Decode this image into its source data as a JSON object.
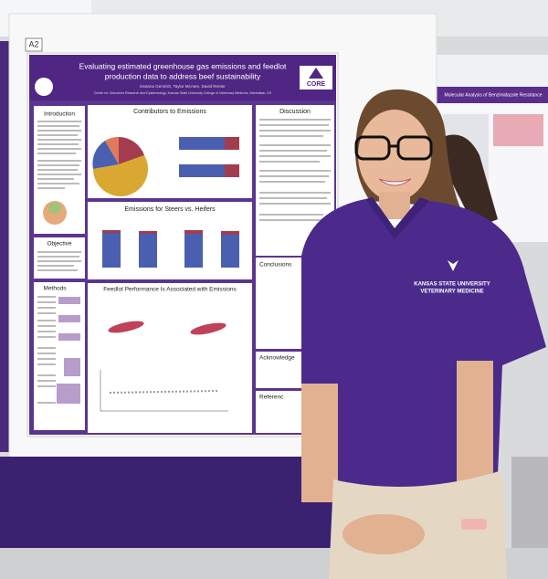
{
  "board_label": "A2",
  "poster": {
    "title_lines": [
      "Evaluating estimated greenhouse gas emissions and feedlot",
      "production data to address beef sustainability"
    ],
    "authors": "Deanna Gennish, Taylor McAtee, David Renter",
    "affiliation": "Center for Outcomes Research and Epidemiology, Kansas State University College of Veterinary Medicine, Manhattan, KS",
    "logo": "CORE",
    "sections": {
      "introduction": "Introduction",
      "contributors": "Contributors to Emissions",
      "discussion": "Discussion",
      "objective": "Objective",
      "steers_heifers": "Emissions for Steers vs. Heifers",
      "methods": "Methods",
      "performance": "Feedlot Performance Is Associated with Emissions",
      "conclusions": "Conclusions",
      "acknowledgements": "Acknowledge",
      "references": "Referenc"
    }
  },
  "shirt_text": [
    "KANSAS STATE UNIVERSITY",
    "VETERINARY MEDICINE"
  ],
  "background_poster_title": "Molecular Analysis of Benzimidazole Resistance"
}
